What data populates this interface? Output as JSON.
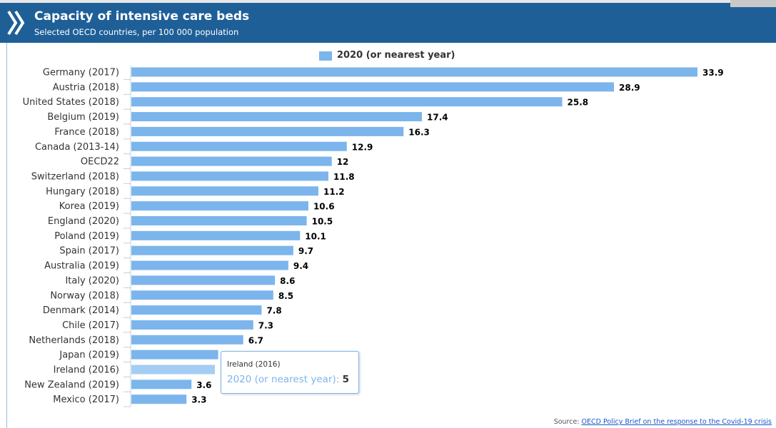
{
  "header": {
    "title": "Capacity of intensive care beds",
    "subtitle": "Selected OECD countries, per 100 000 population"
  },
  "legend": {
    "label": "2020 (or nearest year)",
    "position": "top-center"
  },
  "tooltip": {
    "category": "Ireland (2016)",
    "series": "2020 (or nearest year)",
    "value": "5"
  },
  "source": {
    "prefix": "Source: ",
    "link_text": "OECD Policy Brief on the response to the Covid-19 crisis"
  },
  "colors": {
    "header_bg": "#1f5f97",
    "bar": "#7cb5ec",
    "bar_hover": "#a4cdf3"
  },
  "chart_data": {
    "type": "bar",
    "orientation": "horizontal",
    "title": "Capacity of intensive care beds",
    "subtitle": "Selected OECD countries, per 100 000 population",
    "categories": [
      "Germany (2017)",
      "Austria (2018)",
      "United States (2018)",
      "Belgium (2019)",
      "France (2018)",
      "Canada (2013-14)",
      "OECD22",
      "Switzerland (2018)",
      "Hungary (2018)",
      "Korea (2019)",
      "England (2020)",
      "Poland (2019)",
      "Spain (2017)",
      "Australia (2019)",
      "Italy (2020)",
      "Norway (2018)",
      "Denmark (2014)",
      "Chile (2017)",
      "Netherlands (2018)",
      "Japan (2019)",
      "Ireland (2016)",
      "New Zealand (2019)",
      "Mexico (2017)"
    ],
    "series": [
      {
        "name": "2020 (or nearest year)",
        "values": [
          33.9,
          28.9,
          25.8,
          17.4,
          16.3,
          12.9,
          12,
          11.8,
          11.2,
          10.6,
          10.5,
          10.1,
          9.7,
          9.4,
          8.6,
          8.5,
          7.8,
          7.3,
          6.7,
          5.2,
          5,
          3.6,
          3.3
        ]
      }
    ],
    "highlighted_category": "Ireland (2016)",
    "xlim": [
      0,
      34
    ],
    "grid": false,
    "legend": "top-center"
  }
}
